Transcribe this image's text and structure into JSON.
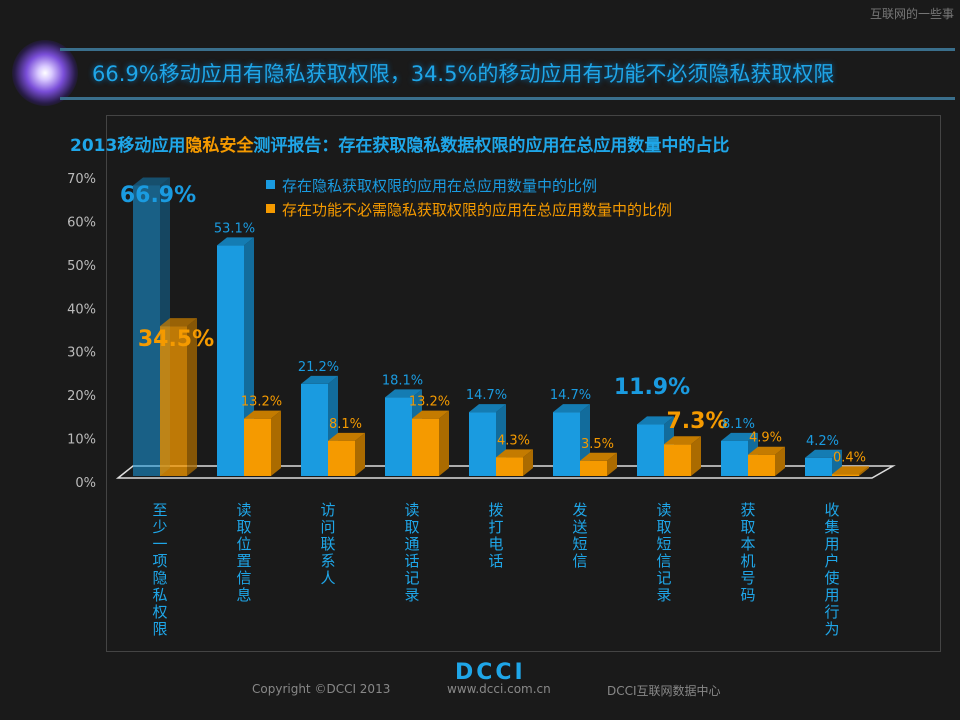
{
  "watermark": "互联网的一些事",
  "banner": {
    "title": "66.9%移动应用有隐私获取权限，34.5%的移动应用有功能不必须隐私获取权限"
  },
  "chart_data": {
    "type": "bar",
    "title_parts": [
      "2013移动应用",
      "隐私安全",
      "测评报告：存在获取隐私数据权限的应用在总应用数量中的占比"
    ],
    "categories": [
      "至少一项隐私权限",
      "读取位置信息",
      "访问联系人",
      "读取通话记录",
      "拨打电话",
      "发送短信",
      "读取短信记录",
      "获取本机号码",
      "收集用户使用行为"
    ],
    "series": [
      {
        "name": "存在隐私获取权限的应用在总应用数量中的比例",
        "color": "#1a9be0",
        "values": [
          66.9,
          53.1,
          21.2,
          18.1,
          14.7,
          14.7,
          11.9,
          8.1,
          4.2
        ],
        "labels": [
          "66.9%",
          "53.1%",
          "21.2%",
          "18.1%",
          "14.7%",
          "14.7%",
          "11.9%",
          "8.1%",
          "4.2%"
        ]
      },
      {
        "name": "存在功能不必需隐私获取权限的应用在总应用数量中的比例",
        "color": "#f59a00",
        "values": [
          34.5,
          13.2,
          8.1,
          13.2,
          4.3,
          3.5,
          7.3,
          4.9,
          0.4
        ],
        "labels": [
          "34.5%",
          "13.2%",
          "8.1%",
          "13.2%",
          "4.3%",
          "3.5%",
          "7.3%",
          "4.9%",
          "0.4%"
        ]
      }
    ],
    "highlighted": [
      [
        0,
        0
      ],
      [
        1,
        0
      ],
      [
        0,
        6
      ],
      [
        1,
        6
      ]
    ],
    "yticks": [
      "0%",
      "10%",
      "20%",
      "30%",
      "40%",
      "50%",
      "60%",
      "70%"
    ],
    "ylim": [
      0,
      70
    ],
    "legend": "top",
    "grid": false
  },
  "footer": {
    "logo": "DCCI",
    "copyright": "Copyright ©DCCI 2013",
    "url": "www.dcci.com.cn",
    "org": "DCCI互联网数据中心"
  }
}
